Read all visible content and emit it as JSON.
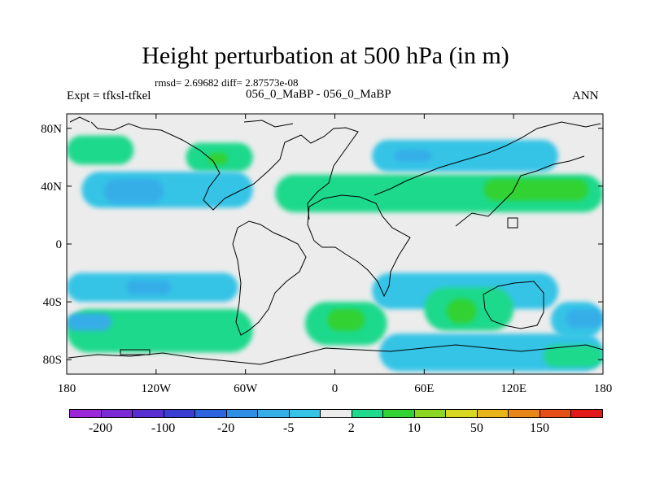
{
  "header": {
    "title": "Height perturbation at 500 hPa (in m)",
    "stats": "rmsd= 2.69682 diff= 2.87573e-08",
    "experiment": "Expt = tfksl-tfkel",
    "case": "056_0_MaBP - 056_0_MaBP",
    "season": "ANN"
  },
  "chart_data": {
    "type": "heatmap",
    "title": "Height perturbation at 500 hPa (in m)",
    "xlabel": "",
    "ylabel": "",
    "x_range": [
      -180,
      180
    ],
    "y_range": [
      -90,
      90
    ],
    "x_ticks": [
      {
        "value": -180,
        "label": "180"
      },
      {
        "value": -120,
        "label": "120W"
      },
      {
        "value": -60,
        "label": "60W"
      },
      {
        "value": 0,
        "label": "0"
      },
      {
        "value": 60,
        "label": "60E"
      },
      {
        "value": 120,
        "label": "120E"
      },
      {
        "value": 180,
        "label": "180"
      }
    ],
    "y_ticks": [
      {
        "value": 80,
        "label": "80N"
      },
      {
        "value": 40,
        "label": "40N"
      },
      {
        "value": 0,
        "label": "0"
      },
      {
        "value": -40,
        "label": "40S"
      },
      {
        "value": -80,
        "label": "80S"
      }
    ],
    "colorbar": {
      "colors": [
        "#9c27d9",
        "#7b2ad6",
        "#5a2fd2",
        "#3a3fd2",
        "#2f64e0",
        "#2f8fe6",
        "#35aee8",
        "#35c4e6",
        "#ececec",
        "#1fd98c",
        "#33d233",
        "#8cd624",
        "#d8d822",
        "#e8b41a",
        "#e8861a",
        "#e8501a",
        "#e31a1a"
      ],
      "labels": [
        {
          "after_box": 1,
          "text": "-200"
        },
        {
          "after_box": 3,
          "text": "-100"
        },
        {
          "after_box": 5,
          "text": "-20"
        },
        {
          "after_box": 7,
          "text": "-5"
        },
        {
          "after_box": 9,
          "text": "2"
        },
        {
          "after_box": 11,
          "text": "10"
        },
        {
          "after_box": 13,
          "text": "50"
        },
        {
          "after_box": 15,
          "text": "150"
        }
      ]
    },
    "features": [
      {
        "type": "band",
        "name": "arctic-positive-left",
        "color": "#1fd98c",
        "lon": [
          -180,
          -135
        ],
        "lat": [
          55,
          75
        ]
      },
      {
        "type": "band",
        "name": "north-atlantic-positive",
        "color": "#1fd98c",
        "lon": [
          -100,
          -55
        ],
        "lat": [
          50,
          70
        ]
      },
      {
        "type": "band",
        "name": "north-atlantic-core",
        "color": "#33d233",
        "lon": [
          -85,
          -72
        ],
        "lat": [
          55,
          63
        ]
      },
      {
        "type": "band",
        "name": "eurasia-north-negative",
        "color": "#35c4e6",
        "lon": [
          25,
          150
        ],
        "lat": [
          50,
          72
        ]
      },
      {
        "type": "band",
        "name": "eurasia-north-core",
        "color": "#35aee8",
        "lon": [
          40,
          65
        ],
        "lat": [
          57,
          65
        ]
      },
      {
        "type": "band",
        "name": "north-pacific-negative",
        "color": "#35c4e6",
        "lon": [
          -170,
          -55
        ],
        "lat": [
          25,
          50
        ]
      },
      {
        "type": "band",
        "name": "north-pacific-core",
        "color": "#35aee8",
        "lon": [
          -155,
          -115
        ],
        "lat": [
          28,
          45
        ]
      },
      {
        "type": "band",
        "name": "midlat-asia-positive",
        "color": "#1fd98c",
        "lon": [
          -40,
          180
        ],
        "lat": [
          22,
          48
        ]
      },
      {
        "type": "band",
        "name": "asia-core",
        "color": "#33d233",
        "lon": [
          100,
          170
        ],
        "lat": [
          30,
          45
        ]
      },
      {
        "type": "band",
        "name": "south-pacific-negative",
        "color": "#35c4e6",
        "lon": [
          -180,
          -65
        ],
        "lat": [
          -40,
          -20
        ]
      },
      {
        "type": "band",
        "name": "south-pacific-core",
        "color": "#35aee8",
        "lon": [
          -140,
          -110
        ],
        "lat": [
          -35,
          -25
        ]
      },
      {
        "type": "band",
        "name": "southern-positive-west",
        "color": "#1fd98c",
        "lon": [
          -180,
          -55
        ],
        "lat": [
          -75,
          -45
        ]
      },
      {
        "type": "band",
        "name": "southern-core-west",
        "color": "#35aee8",
        "lon": [
          -180,
          -150
        ],
        "lat": [
          -60,
          -48
        ]
      },
      {
        "type": "band",
        "name": "south-atlantic-positive",
        "color": "#1fd98c",
        "lon": [
          -20,
          35
        ],
        "lat": [
          -70,
          -40
        ]
      },
      {
        "type": "band",
        "name": "south-atlantic-core",
        "color": "#33d233",
        "lon": [
          -5,
          20
        ],
        "lat": [
          -60,
          -45
        ]
      },
      {
        "type": "band",
        "name": "indian-ocean-negative",
        "color": "#35c4e6",
        "lon": [
          25,
          150
        ],
        "lat": [
          -45,
          -20
        ]
      },
      {
        "type": "band",
        "name": "indian-ocean-positive",
        "color": "#1fd98c",
        "lon": [
          60,
          120
        ],
        "lat": [
          -60,
          -30
        ]
      },
      {
        "type": "band",
        "name": "indian-ocean-core",
        "color": "#33d233",
        "lon": [
          75,
          95
        ],
        "lat": [
          -55,
          -38
        ]
      },
      {
        "type": "band",
        "name": "southern-negative-east",
        "color": "#35c4e6",
        "lon": [
          30,
          180
        ],
        "lat": [
          -88,
          -62
        ]
      },
      {
        "type": "band",
        "name": "south-pacific-east-negative",
        "color": "#35c4e6",
        "lon": [
          145,
          180
        ],
        "lat": [
          -65,
          -40
        ]
      },
      {
        "type": "band",
        "name": "south-pacific-east-core",
        "color": "#35aee8",
        "lon": [
          155,
          180
        ],
        "lat": [
          -58,
          -45
        ]
      },
      {
        "type": "band",
        "name": "south-east-positive",
        "color": "#1fd98c",
        "lon": [
          140,
          180
        ],
        "lat": [
          -85,
          -70
        ]
      }
    ]
  }
}
